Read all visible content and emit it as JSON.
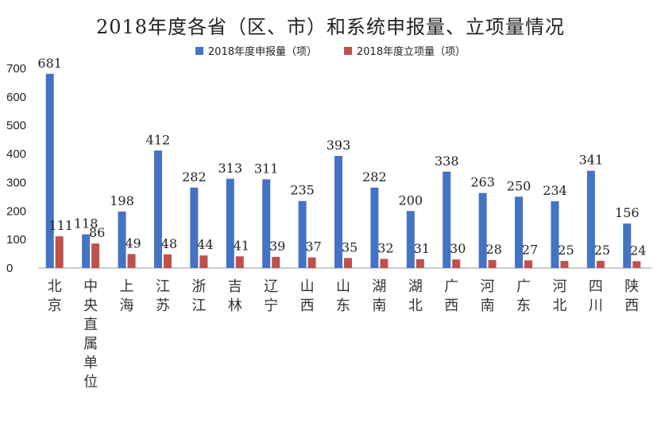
{
  "colors": {
    "applications": "#4472c4",
    "approved": "#c0504d",
    "axis": "#9a9a9a"
  },
  "chart_data": {
    "type": "bar",
    "title": "2018年度各省（区、市）和系统申报量、立项量情况",
    "categories": [
      "北京",
      "中央直属单位",
      "上海",
      "江苏",
      "浙江",
      "吉林",
      "辽宁",
      "山西",
      "山东",
      "湖南",
      "湖北",
      "广西",
      "河南",
      "广东",
      "河北",
      "四川",
      "陕西"
    ],
    "series": [
      {
        "name": "2018年度申报量（项）",
        "values": [
          681,
          118,
          198,
          412,
          282,
          313,
          311,
          235,
          393,
          282,
          200,
          338,
          263,
          250,
          234,
          341,
          156
        ]
      },
      {
        "name": "2018年度立项量（项）",
        "values": [
          111,
          86,
          49,
          48,
          44,
          41,
          39,
          37,
          35,
          32,
          31,
          30,
          28,
          27,
          25,
          25,
          24
        ]
      }
    ],
    "ylim": [
      0,
      700
    ],
    "yticks": [
      0,
      100,
      200,
      300,
      400,
      500,
      600,
      700
    ],
    "grid": false,
    "legend_position": "top-center"
  }
}
